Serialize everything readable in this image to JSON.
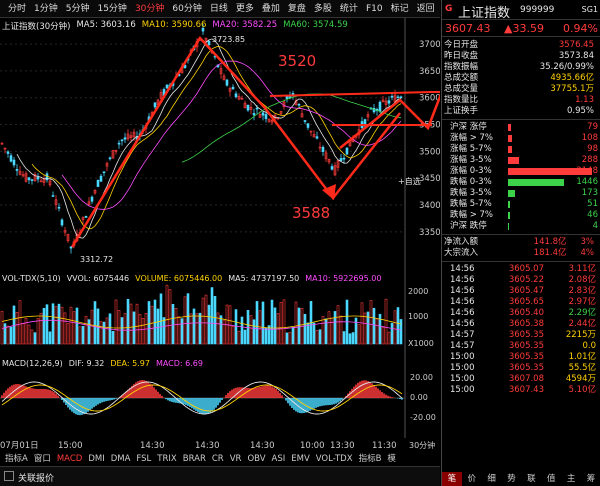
{
  "toolbar": {
    "items": [
      "分时",
      "1分钟",
      "5分钟",
      "15分钟",
      "30分钟",
      "60分钟",
      "日线",
      "更多",
      "叠加",
      "复盘",
      "多股",
      "统计",
      "F10",
      "标记",
      "返回"
    ],
    "active_index": 4
  },
  "main": {
    "legend_title": "上证指数(30分钟)",
    "ma5": "MA5: 3603.16",
    "ma10": "MA10: 3590.66",
    "ma20": "MA20: 3582.25",
    "ma60": "MA60: 3574.59",
    "high_label": "3723.85",
    "low_label": "3312.72",
    "annot_1": "3520",
    "annot_2": "3588",
    "self_select": "+自选",
    "y_ticks": [
      "3700",
      "3650",
      "3600",
      "3550",
      "3500",
      "3450",
      "3400",
      "3350"
    ]
  },
  "volume": {
    "legend": "VOL-TDX(5,10)",
    "vvol": "VVOL: 6075446",
    "vol": "VOLUME: 6075446.00",
    "ma5": "MA5: 4737197.50",
    "ma10": "MA10: 5922695.00",
    "y_ticks": [
      "2000",
      "1000",
      "X1000"
    ]
  },
  "macd": {
    "legend": "MACD(12,26,9)",
    "dif": "DIF: 9.32",
    "dea": "DEA: 5.97",
    "macd": "MACD: 6.69",
    "y_ticks": [
      "20.00",
      "0.00",
      "-20.00"
    ]
  },
  "time_axis": {
    "labels": [
      "07月01日",
      "15:00",
      "14:30",
      "14:30",
      "14:30",
      "10:00",
      "13:30",
      "11:30"
    ],
    "unit": "30分钟"
  },
  "indicator_tabs": {
    "items": [
      "指标A",
      "窗口",
      "MACD",
      "DMI",
      "DMA",
      "FSL",
      "TRIX",
      "BRAR",
      "CR",
      "VR",
      "OBV",
      "ASI",
      "EMV",
      "VOL-TDX",
      "指标B",
      "模"
    ],
    "active_index": 2
  },
  "bottom": {
    "label": "关联报价"
  },
  "right": {
    "badge": "G",
    "name": "上证指数",
    "code": "999999",
    "corner": "SG1",
    "price": "3607.43",
    "change": "▲33.59",
    "pct": "0.94%",
    "quote_rows": [
      {
        "label": "今日开盘",
        "value": "3576.45",
        "color": "red"
      },
      {
        "label": "昨日收盘",
        "value": "3573.84",
        "color": "white"
      },
      {
        "label": "指数振幅",
        "value": "35.26/0.99%",
        "color": "white"
      },
      {
        "label": "总成交额",
        "value": "4935.66亿",
        "color": "yellow"
      },
      {
        "label": "总成交量",
        "value": "37755.1万",
        "color": "yellow"
      },
      {
        "label": "指数量比",
        "value": "1.13",
        "color": "red"
      },
      {
        "label": "上证换手",
        "value": "0.95%",
        "color": "white"
      }
    ],
    "dist_rows": [
      {
        "label": "沪深 涨停",
        "value": "79",
        "color": "red",
        "bar": 0.04
      },
      {
        "label": "涨幅 > 7%",
        "value": "108",
        "color": "red",
        "bar": 0.05
      },
      {
        "label": "涨幅 5-7%",
        "value": "98",
        "color": "red",
        "bar": 0.045
      },
      {
        "label": "涨幅 3-5%",
        "value": "288",
        "color": "red",
        "bar": 0.13
      },
      {
        "label": "涨幅 0-3%",
        "value": "2148",
        "color": "red",
        "bar": 1.0
      },
      {
        "label": "跌幅 0-3%",
        "value": "1446",
        "color": "green",
        "bar": 0.67
      },
      {
        "label": "跌幅 3-5%",
        "value": "173",
        "color": "green",
        "bar": 0.08
      },
      {
        "label": "跌幅 5-7%",
        "value": "51",
        "color": "green",
        "bar": 0.025
      },
      {
        "label": "跌幅 > 7%",
        "value": "46",
        "color": "green",
        "bar": 0.022
      },
      {
        "label": "沪深 跌停",
        "value": "4",
        "color": "green",
        "bar": 0.004
      }
    ],
    "flow_rows": [
      {
        "label": "净流入额",
        "value": "141.8亿",
        "pct": "3%"
      },
      {
        "label": "大宗流入",
        "value": "181.4亿",
        "pct": "4%"
      }
    ],
    "ticks": [
      {
        "time": "14:56",
        "price": "3605.07",
        "vol": "3.11亿",
        "pc": "red",
        "vc": "red"
      },
      {
        "time": "14:56",
        "price": "3605.22",
        "vol": "2.08亿",
        "pc": "red",
        "vc": "red"
      },
      {
        "time": "14:56",
        "price": "3605.47",
        "vol": "2.83亿",
        "pc": "red",
        "vc": "red"
      },
      {
        "time": "14:56",
        "price": "3605.65",
        "vol": "2.97亿",
        "pc": "red",
        "vc": "red"
      },
      {
        "time": "14:56",
        "price": "3605.40",
        "vol": "2.29亿",
        "pc": "red",
        "vc": "green"
      },
      {
        "time": "14:56",
        "price": "3605.38",
        "vol": "2.44亿",
        "pc": "red",
        "vc": "red"
      },
      {
        "time": "14:57",
        "price": "3605.35",
        "vol": "2215万",
        "pc": "red",
        "vc": "yellow"
      },
      {
        "time": "14:57",
        "price": "3605.35",
        "vol": "0.0",
        "pc": "red",
        "vc": "yellow"
      },
      {
        "time": "15:00",
        "price": "3605.35",
        "vol": "1.01亿",
        "pc": "red",
        "vc": "yellow"
      },
      {
        "time": "15:00",
        "price": "3605.35",
        "vol": "55.5亿",
        "pc": "red",
        "vc": "yellow"
      },
      {
        "time": "15:00",
        "price": "3607.08",
        "vol": "4594万",
        "pc": "red",
        "vc": "yellow"
      },
      {
        "time": "15:00",
        "price": "3607.43",
        "vol": "5.10亿",
        "pc": "red",
        "vc": "red"
      }
    ],
    "tabs": [
      "笔",
      "价",
      "细",
      "势",
      "联",
      "值",
      "主",
      "筹"
    ],
    "active_tab": 0
  }
}
